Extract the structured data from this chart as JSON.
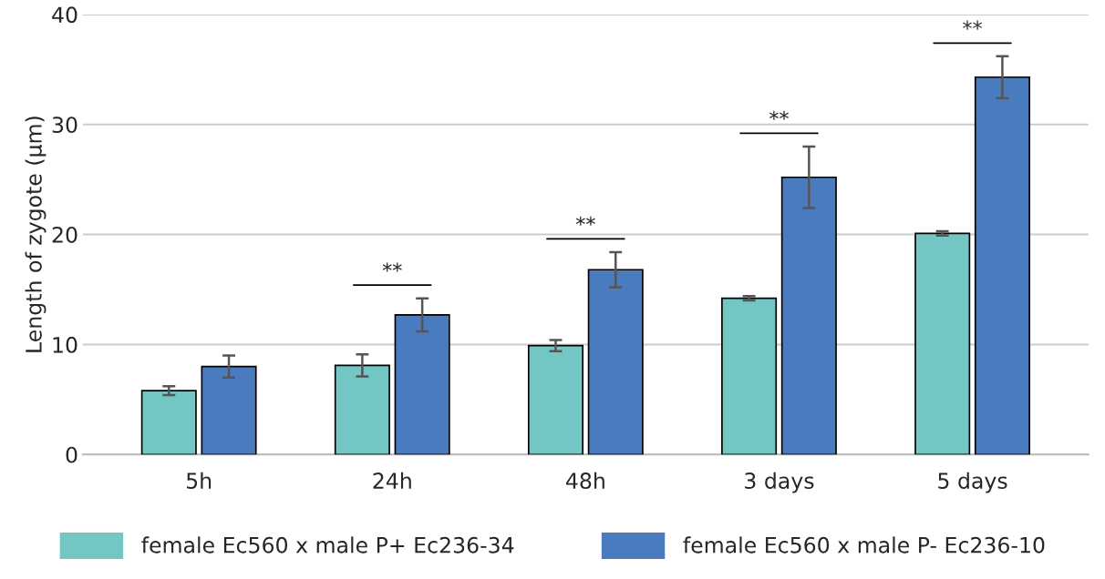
{
  "chart_data": {
    "type": "bar",
    "ylabel": "Length of zygote (µm)",
    "categories": [
      "5h",
      "24h",
      "48h",
      "3 days",
      "5 days"
    ],
    "series": [
      {
        "name": "female Ec560 x male P+ Ec236-34",
        "color": "#72c6c3",
        "values": [
          5.8,
          8.1,
          9.9,
          14.2,
          20.1
        ],
        "errors": [
          0.4,
          1.0,
          0.5,
          0.2,
          0.2
        ]
      },
      {
        "name": "female Ec560 x male P- Ec236-10",
        "color": "#4a7bbf",
        "values": [
          8.0,
          12.7,
          16.8,
          25.2,
          34.3
        ],
        "errors": [
          1.0,
          1.5,
          1.6,
          2.8,
          1.9
        ]
      }
    ],
    "ylim": [
      0,
      40
    ],
    "yticks": [
      0,
      10,
      20,
      30,
      40
    ],
    "grid": "y",
    "legend": "bottom",
    "annotations": [
      "**",
      "**",
      "**",
      "**"
    ]
  }
}
